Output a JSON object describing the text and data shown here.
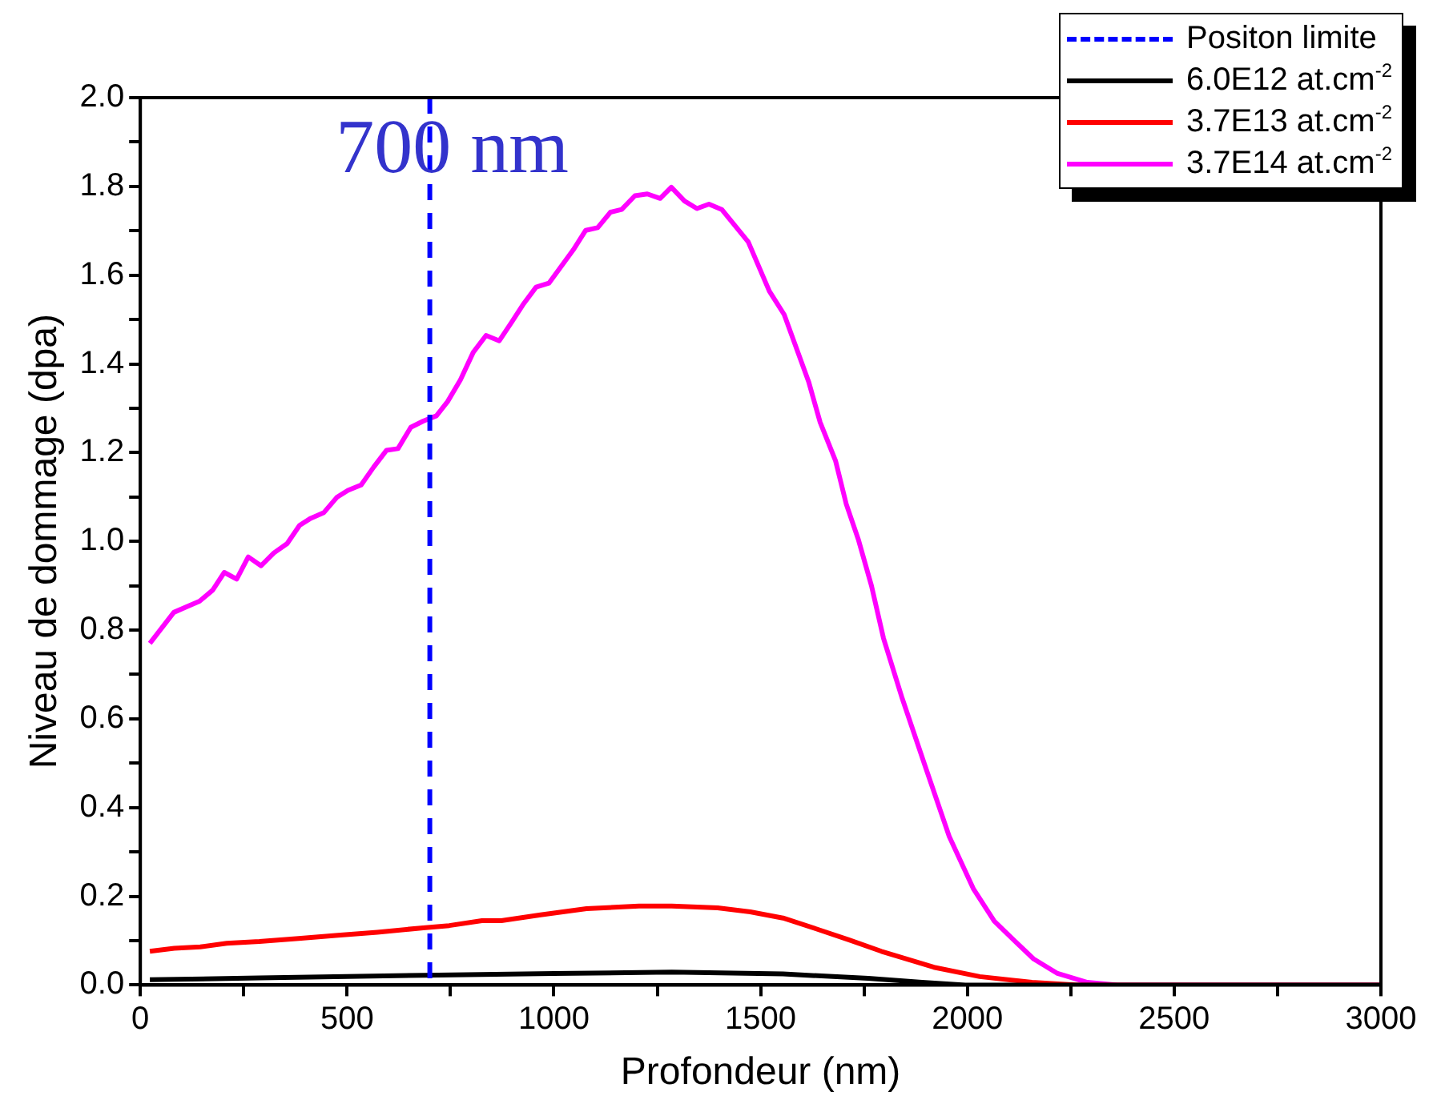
{
  "chart_data": {
    "type": "line",
    "xlabel": "Profondeur (nm)",
    "ylabel": "Niveau de dommage (dpa)",
    "xlim": [
      0,
      3000
    ],
    "xticks": [
      0,
      {
        "value": 250,
        "label": null
      },
      500,
      {
        "value": 750,
        "label": null
      },
      1000,
      {
        "value": 1250,
        "label": null
      },
      1500,
      {
        "value": 1750,
        "label": null
      },
      2000,
      {
        "value": 2250,
        "label": null
      },
      2500,
      {
        "value": 2750,
        "label": null
      },
      3000
    ],
    "ylim": [
      0,
      2.0
    ],
    "yticks": [
      {
        "value": 0,
        "label": "0.0"
      },
      {
        "value": 0.1,
        "label": null
      },
      {
        "value": 0.2,
        "label": "0.2"
      },
      {
        "value": 0.3,
        "label": null
      },
      {
        "value": 0.4,
        "label": "0.4"
      },
      {
        "value": 0.5,
        "label": null
      },
      {
        "value": 0.6,
        "label": "0.6"
      },
      {
        "value": 0.7,
        "label": null
      },
      {
        "value": 0.8,
        "label": "0.8"
      },
      {
        "value": 0.9,
        "label": null
      },
      {
        "value": 1.0,
        "label": "1.0"
      },
      {
        "value": 1.1,
        "label": null
      },
      {
        "value": 1.2,
        "label": "1.2"
      },
      {
        "value": 1.3,
        "label": null
      },
      {
        "value": 1.4,
        "label": "1.4"
      },
      {
        "value": 1.5,
        "label": null
      },
      {
        "value": 1.6,
        "label": "1.6"
      },
      {
        "value": 1.7,
        "label": null
      },
      {
        "value": 1.8,
        "label": "1.8"
      },
      {
        "value": 1.9,
        "label": null
      },
      {
        "value": 2.0,
        "label": "2.0"
      }
    ],
    "grid": false,
    "legend": "top right",
    "marker": "none",
    "line_style": "solid",
    "ref_lines": [
      {
        "axis": "x",
        "value": 700,
        "label": "Positon limite",
        "color": "#0000ff",
        "line_style": "dashed"
      }
    ],
    "annotations": [
      "700 nm"
    ],
    "series": [
      {
        "name": "6.0E12 at.cm$^{-2}$",
        "color": "#000000",
        "x": [
          23,
          288,
          684,
          1000,
          1285,
          1554,
          1760,
          1890,
          1995,
          3000
        ],
        "values": [
          0.012,
          0.016,
          0.022,
          0.026,
          0.029,
          0.025,
          0.015,
          0.006,
          0,
          0
        ]
      },
      {
        "name": "3.7E13 at.cm$^{-2}$",
        "color": "#ff0000",
        "x": [
          23,
          82,
          145,
          209,
          288,
          383,
          478,
          573,
          684,
          747,
          826,
          873,
          968,
          1079,
          1206,
          1285,
          1396,
          1475,
          1554,
          1633,
          1713,
          1792,
          1919,
          2030,
          2156,
          2267,
          3000
        ],
        "values": [
          0.076,
          0.083,
          0.086,
          0.094,
          0.098,
          0.105,
          0.112,
          0.119,
          0.129,
          0.134,
          0.145,
          0.145,
          0.158,
          0.172,
          0.178,
          0.178,
          0.174,
          0.165,
          0.151,
          0.127,
          0.102,
          0.076,
          0.04,
          0.019,
          0.006,
          0,
          0
        ]
      },
      {
        "name": "3.7E14 at.cm$^{-2}$",
        "color": "#ff00ff",
        "x": [
          23,
          81,
          143,
          175,
          203,
          233,
          261,
          292,
          323,
          355,
          385,
          412,
          444,
          475,
          502,
          534,
          564,
          595,
          623,
          654,
          684,
          716,
          743,
          774,
          805,
          836,
          868,
          898,
          925,
          957,
          988,
          1017,
          1047,
          1077,
          1106,
          1137,
          1164,
          1196,
          1226,
          1257,
          1284,
          1316,
          1346,
          1375,
          1406,
          1470,
          1521,
          1557,
          1616,
          1644,
          1681,
          1707,
          1736,
          1768,
          1797,
          1841,
          1898,
          1956,
          2015,
          2065,
          2116,
          2160,
          2218,
          2290,
          2363,
          3000
        ],
        "values": [
          0.77,
          0.84,
          0.865,
          0.89,
          0.93,
          0.915,
          0.965,
          0.945,
          0.974,
          0.995,
          1.036,
          1.052,
          1.065,
          1.099,
          1.115,
          1.127,
          1.167,
          1.205,
          1.209,
          1.257,
          1.271,
          1.283,
          1.315,
          1.364,
          1.426,
          1.464,
          1.452,
          1.494,
          1.533,
          1.573,
          1.582,
          1.619,
          1.657,
          1.701,
          1.707,
          1.742,
          1.748,
          1.779,
          1.783,
          1.773,
          1.798,
          1.767,
          1.75,
          1.76,
          1.748,
          1.675,
          1.564,
          1.511,
          1.36,
          1.268,
          1.182,
          1.084,
          1.005,
          0.9,
          0.782,
          0.65,
          0.493,
          0.335,
          0.216,
          0.144,
          0.098,
          0.059,
          0.026,
          0.006,
          0,
          0
        ]
      }
    ]
  }
}
